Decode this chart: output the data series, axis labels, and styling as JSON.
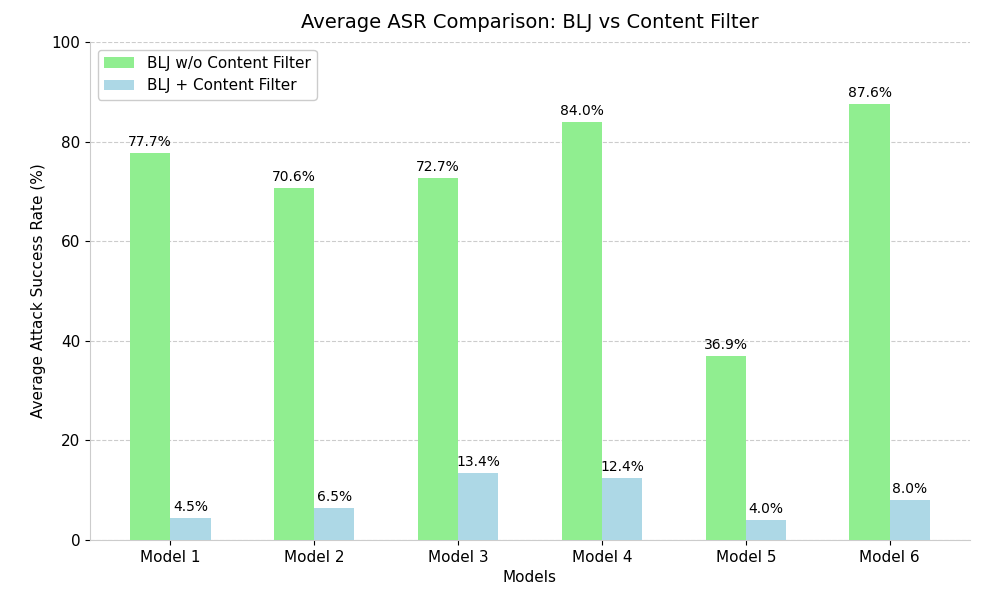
{
  "title": "Average ASR Comparison: BLJ vs Content Filter",
  "xlabel": "Models",
  "ylabel": "Average Attack Success Rate (%)",
  "models": [
    "Model 1",
    "Model 2",
    "Model 3",
    "Model 4",
    "Model 5",
    "Model 6"
  ],
  "blj_without_cf": [
    77.7,
    70.6,
    72.7,
    84.0,
    36.9,
    87.6
  ],
  "blj_with_cf": [
    4.5,
    6.5,
    13.4,
    12.4,
    4.0,
    8.0
  ],
  "color_without_cf": "#90EE90",
  "color_with_cf": "#ADD8E6",
  "legend_without_cf": "BLJ w/o Content Filter",
  "legend_with_cf": "BLJ + Content Filter",
  "ylim": [
    0,
    100
  ],
  "yticks": [
    0,
    20,
    40,
    60,
    80,
    100
  ],
  "bar_width": 0.28,
  "title_fontsize": 14,
  "label_fontsize": 11,
  "tick_fontsize": 11,
  "annotation_fontsize": 10,
  "background_color": "#ffffff",
  "grid_color": "#cccccc"
}
